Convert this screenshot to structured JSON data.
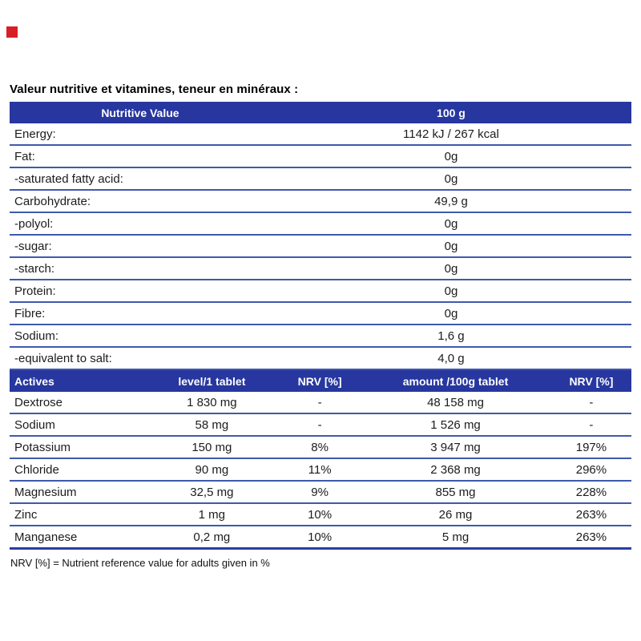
{
  "page": {
    "title": "Valeur nutritive et vitamines, teneur en minéraux :",
    "footnote": "NRV [%] = Nutrient reference value for adults given in %"
  },
  "colors": {
    "header_bg": "#27379f",
    "header_text": "#ffffff",
    "row_line": "#4059ac",
    "bottom_line": "#2c3da1",
    "red_marker": "#d81f26",
    "text": "#1c1c1c"
  },
  "nutritive_table": {
    "headers": [
      "Nutritive Value",
      "100 g"
    ],
    "rows": [
      {
        "label": "Energy:",
        "value": "1142 kJ /  267 kcal"
      },
      {
        "label": "Fat:",
        "value": "0g"
      },
      {
        "label": "-saturated fatty acid:",
        "value": "0g"
      },
      {
        "label": "Carbohydrate:",
        "value": "49,9 g"
      },
      {
        "label": "-polyol:",
        "value": "0g"
      },
      {
        "label": "-sugar:",
        "value": "0g"
      },
      {
        "label": "-starch:",
        "value": "0g"
      },
      {
        "label": "Protein:",
        "value": "0g"
      },
      {
        "label": "Fibre:",
        "value": "0g"
      },
      {
        "label": "Sodium:",
        "value": "1,6 g"
      },
      {
        "label": "-equivalent to salt:",
        "value": "4,0 g"
      }
    ]
  },
  "actives_table": {
    "headers": [
      "Actives",
      "level/1 tablet",
      "NRV [%]",
      "amount /100g tablet",
      "NRV [%]"
    ],
    "rows": [
      [
        "Dextrose",
        "1 830 mg",
        "-",
        "48 158 mg",
        "-"
      ],
      [
        "Sodium",
        "58 mg",
        "-",
        "1 526 mg",
        "-"
      ],
      [
        "Potassium",
        "150 mg",
        "8%",
        "3 947 mg",
        "197%"
      ],
      [
        "Chloride",
        "90 mg",
        "11%",
        "2 368 mg",
        "296%"
      ],
      [
        "Magnesium",
        "32,5 mg",
        "9%",
        "855 mg",
        "228%"
      ],
      [
        "Zinc",
        "1 mg",
        "10%",
        "26 mg",
        "263%"
      ],
      [
        "Manganese",
        "0,2 mg",
        "10%",
        "5 mg",
        "263%"
      ]
    ]
  }
}
